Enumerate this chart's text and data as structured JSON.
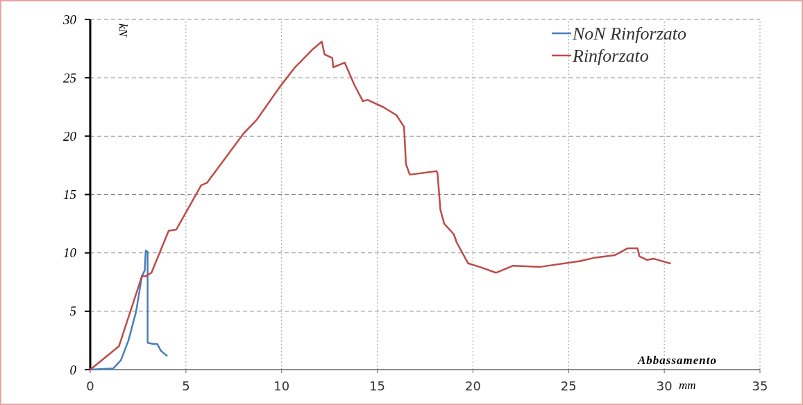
{
  "chart_data": {
    "type": "line",
    "xlabel": "Abbassamento",
    "ylabel": "kN",
    "annotations": [
      "mm"
    ],
    "xlim": [
      0,
      35
    ],
    "xticks": [
      0,
      5,
      10,
      15,
      20,
      25,
      30,
      35
    ],
    "ylim": [
      0,
      30
    ],
    "yticks": [
      0,
      5,
      10,
      15,
      20,
      25,
      30
    ],
    "grid": true,
    "legend": "top right",
    "marker": "none",
    "line_style": "solid",
    "series": [
      {
        "name": "NoN Rinforzato",
        "color": "#4a7ebb",
        "x": [
          0,
          1.2,
          1.6,
          2,
          2.4,
          2.7,
          2.85,
          2.9,
          3.0,
          3.0,
          3.3,
          3.5,
          3.7,
          4.0
        ],
        "values": [
          0,
          0.1,
          0.8,
          2.5,
          5,
          8,
          8.5,
          10.2,
          10.1,
          2.3,
          2.2,
          2.2,
          1.6,
          1.2
        ]
      },
      {
        "name": "Rinforzato",
        "color": "#be4b48",
        "x": [
          0,
          1.5,
          2.7,
          2.9,
          3.2,
          4.1,
          4.5,
          5.8,
          6.1,
          8.0,
          8.7,
          9.9,
          10.7,
          11.6,
          12.1,
          12.25,
          12.65,
          12.7,
          13.3,
          13.8,
          14.25,
          14.5,
          15.3,
          16.0,
          16.4,
          16.5,
          16.7,
          18.1,
          18.15,
          18.3,
          18.5,
          19.0,
          19.15,
          19.75,
          20.35,
          21.2,
          22.1,
          23.5,
          25.6,
          26.4,
          27.4,
          28.1,
          28.6,
          28.7,
          29.1,
          29.45,
          30.3
        ],
        "values": [
          0,
          2.0,
          8,
          8.0,
          8.3,
          11.9,
          12,
          15.8,
          16.0,
          20.2,
          21.4,
          24.2,
          25.9,
          27.4,
          28.1,
          27.0,
          26.7,
          25.9,
          26.3,
          24.4,
          23.0,
          23.1,
          22.5,
          21.8,
          20.8,
          17.6,
          16.7,
          17.0,
          16.8,
          13.7,
          12.5,
          11.6,
          10.9,
          9.1,
          8.8,
          8.3,
          8.9,
          8.8,
          9.3,
          9.6,
          9.8,
          10.4,
          10.4,
          9.7,
          9.4,
          9.5,
          9.1
        ]
      }
    ]
  }
}
